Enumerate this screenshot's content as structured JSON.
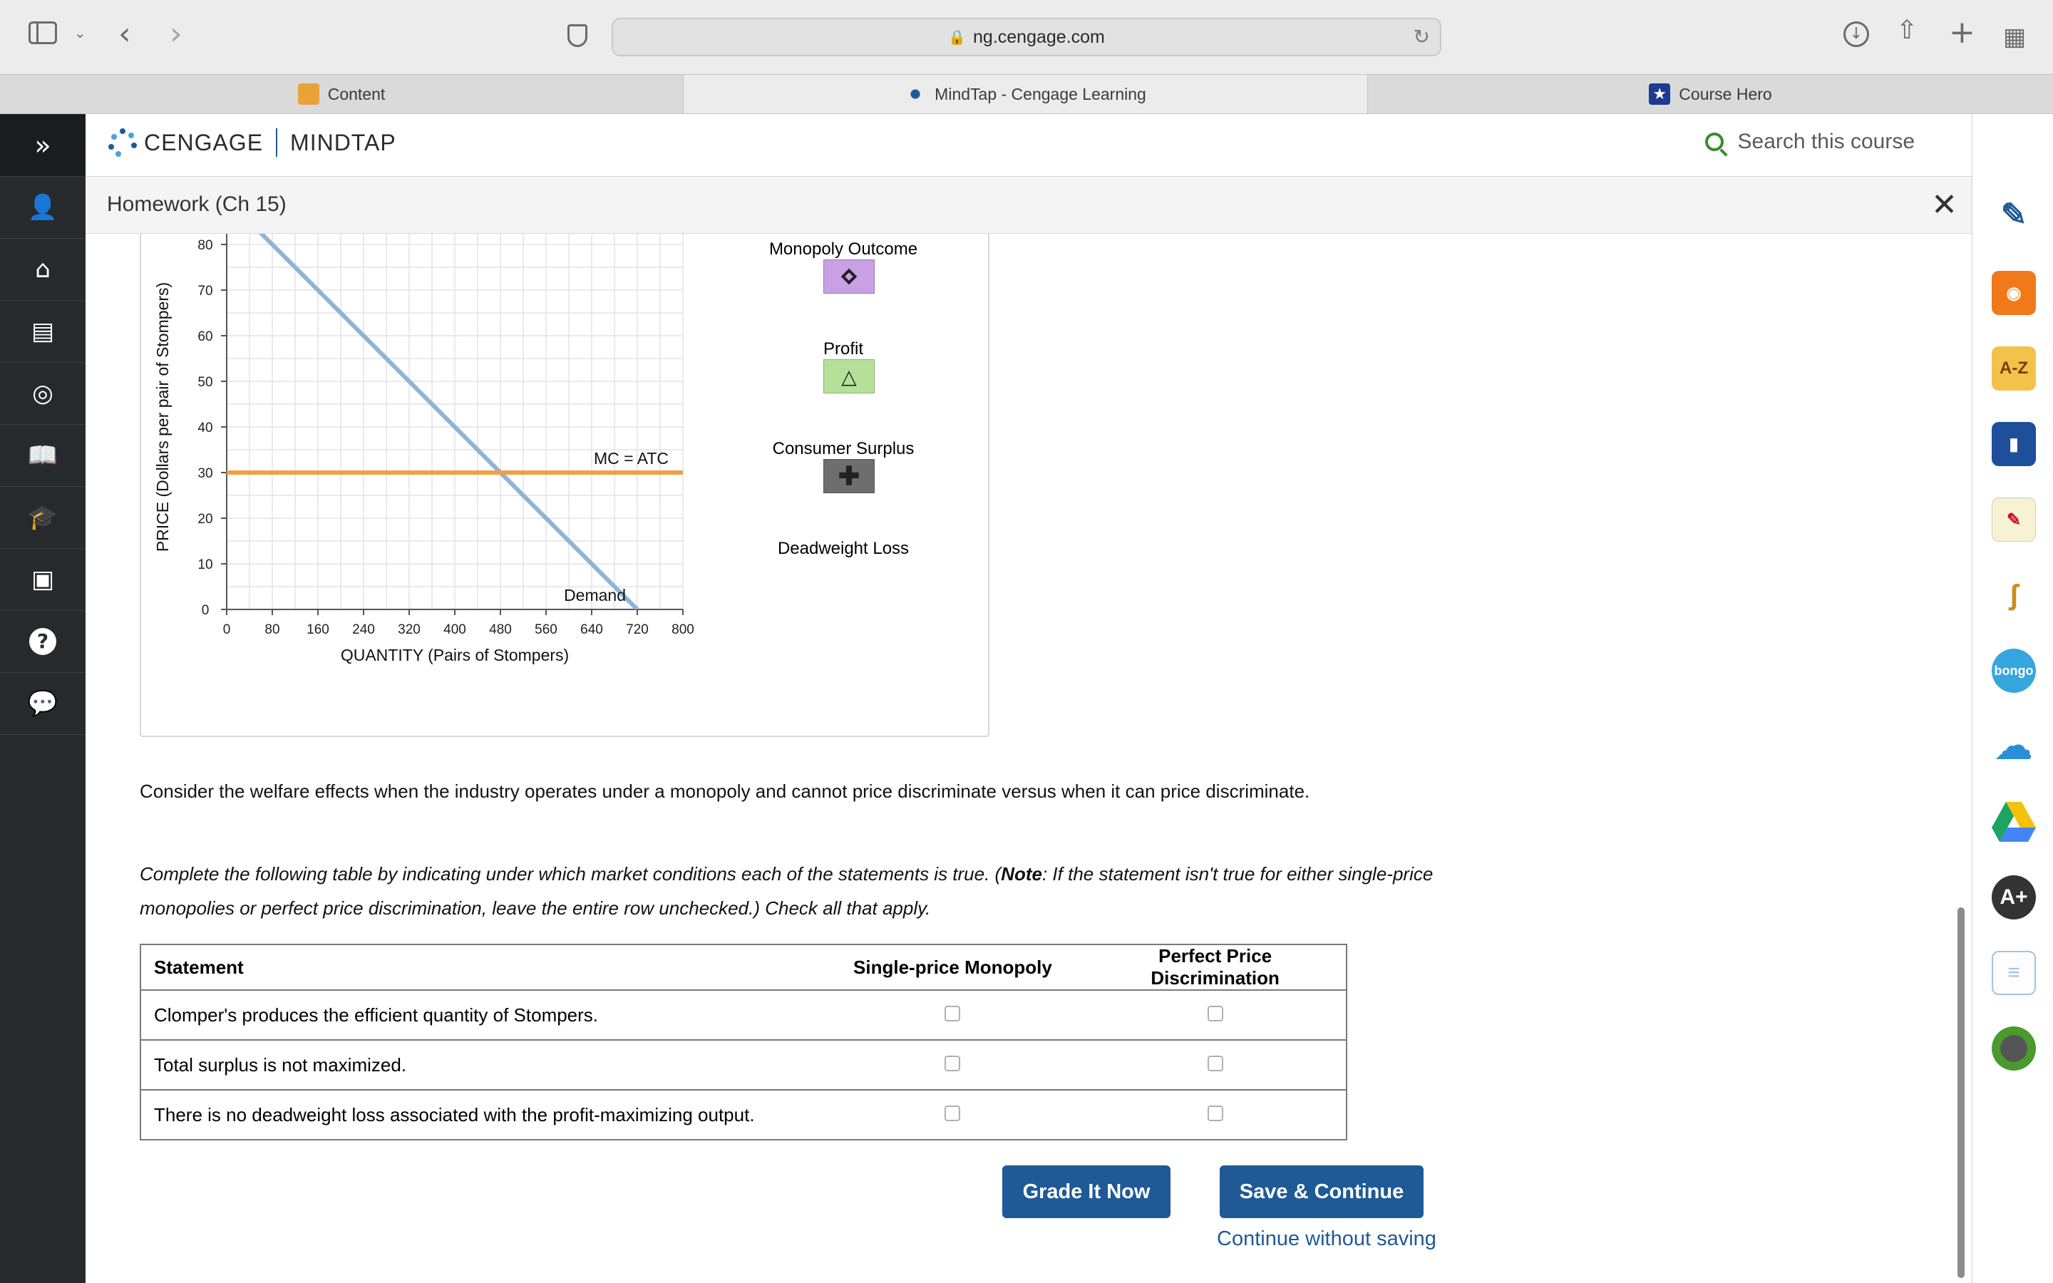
{
  "browser": {
    "url": "ng.cengage.com",
    "tabs": [
      {
        "label": "Content"
      },
      {
        "label": "MindTap - Cengage Learning"
      },
      {
        "label": "Course Hero"
      }
    ]
  },
  "header": {
    "brand_left": "CENGAGE",
    "brand_right": "MINDTAP",
    "search_placeholder": "Search this course"
  },
  "activity": {
    "title": "Homework (Ch 15)"
  },
  "graph": {
    "legend": [
      {
        "label": "Monopoly Outcome",
        "icon": "diamond-icon",
        "color": "#c9a0e4"
      },
      {
        "label": "Profit",
        "icon": "triangle-icon",
        "color": "#b5e09a"
      },
      {
        "label": "Consumer Surplus",
        "icon": "plus-icon",
        "color": "#6e6e6e"
      },
      {
        "label": "Deadweight Loss"
      }
    ]
  },
  "chart_data": {
    "type": "line",
    "xlabel": "QUANTITY (Pairs of Stompers)",
    "ylabel": "PRICE (Dollars per pair of Stompers)",
    "xlim": [
      0,
      800
    ],
    "ylim": [
      0,
      90
    ],
    "x_ticks": [
      0,
      80,
      160,
      240,
      320,
      400,
      480,
      560,
      640,
      720,
      800
    ],
    "y_ticks": [
      0,
      10,
      20,
      30,
      40,
      50,
      60,
      70,
      80
    ],
    "grid": true,
    "series": [
      {
        "name": "Demand",
        "color": "#8fb3d9",
        "x": [
          0,
          720
        ],
        "y": [
          90,
          0
        ]
      },
      {
        "name": "MC = ATC",
        "color": "#f0a040",
        "x": [
          0,
          800
        ],
        "y": [
          30,
          30
        ]
      }
    ]
  },
  "text": {
    "welfare": "Consider the welfare effects when the industry operates under a monopoly and cannot price discriminate versus when it can price discriminate.",
    "instr_a": "Complete the following table by indicating under which market conditions each of the statements is true. (",
    "instr_note": "Note",
    "instr_b": ": If the statement isn't true for either single-price monopolies or perfect price discrimination, leave the entire row unchecked.) Check all that apply."
  },
  "table": {
    "headers": [
      "Statement",
      "Single-price Monopoly",
      "Perfect Price Discrimination"
    ],
    "rows": [
      {
        "statement": "Clomper's produces the efficient quantity of Stompers.",
        "single": false,
        "perfect": false
      },
      {
        "statement": "Total surplus is not maximized.",
        "single": false,
        "perfect": false
      },
      {
        "statement": "There is no deadweight loss associated with the profit-maximizing output.",
        "single": false,
        "perfect": false
      }
    ]
  },
  "actions": {
    "grade": "Grade It Now",
    "save": "Save & Continue",
    "continue": "Continue without saving"
  }
}
